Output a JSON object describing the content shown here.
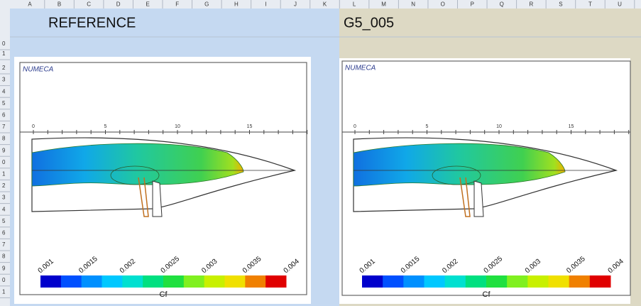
{
  "columns": [
    "A",
    "B",
    "C",
    "D",
    "E",
    "F",
    "G",
    "H",
    "I",
    "J",
    "K",
    "L",
    "M",
    "N",
    "O",
    "P",
    "Q",
    "R",
    "S",
    "T",
    "U"
  ],
  "rows": [
    "0",
    "1",
    "2",
    "3",
    "4",
    "5",
    "6",
    "7",
    "8",
    "9",
    "0",
    "1",
    "2",
    "3",
    "4",
    "5",
    "6",
    "7",
    "8",
    "9",
    "0",
    "1"
  ],
  "panels": [
    {
      "title": "REFERENCE",
      "logo": "NUMECA",
      "axis_ticks": [
        "0",
        "5",
        "10",
        "15"
      ],
      "colorbar_labels": [
        "0.001",
        "0.0015",
        "0.002",
        "0.0025",
        "0.003",
        "0.0035",
        "0.004"
      ],
      "colorbar_title": "Cf"
    },
    {
      "title": "G5_005",
      "logo": "NUMECA",
      "axis_ticks": [
        "0",
        "5",
        "10",
        "15"
      ],
      "colorbar_labels": [
        "0.001",
        "0.0015",
        "0.002",
        "0.0025",
        "0.003",
        "0.0035",
        "0.004"
      ],
      "colorbar_title": "Cf"
    }
  ]
}
